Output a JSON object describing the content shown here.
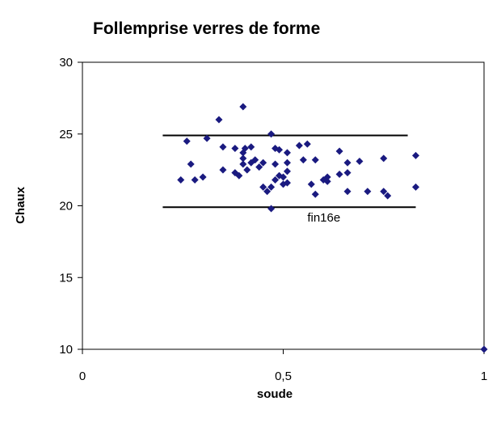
{
  "chart_data": {
    "type": "scatter",
    "title": "Follemprise verres de forme",
    "xlabel": "soude",
    "ylabel": "Chaux",
    "xlim": [
      0,
      1
    ],
    "ylim": [
      10,
      30
    ],
    "x_ticks": [
      "0",
      "0,5",
      "1"
    ],
    "y_ticks": [
      "10",
      "15",
      "20",
      "25",
      "30"
    ],
    "x_tick_values": [
      0,
      0.5,
      1
    ],
    "y_tick_values": [
      10,
      15,
      20,
      25,
      30
    ],
    "grid": false,
    "marker": "diamond",
    "marker_color": "#1a1a80",
    "line_color": "#000000",
    "reference_lines": [
      {
        "y": 24.9,
        "x_start": 0.2,
        "x_end": 0.81
      },
      {
        "y": 19.9,
        "x_start": 0.2,
        "x_end": 0.83
      }
    ],
    "annotations": [
      {
        "text": "fin16e",
        "x": 0.56,
        "y": 18.9
      }
    ],
    "points": [
      {
        "x": 0.245,
        "y": 21.8
      },
      {
        "x": 0.26,
        "y": 24.5
      },
      {
        "x": 0.27,
        "y": 22.9
      },
      {
        "x": 0.28,
        "y": 21.8
      },
      {
        "x": 0.3,
        "y": 22.0
      },
      {
        "x": 0.31,
        "y": 24.7
      },
      {
        "x": 0.34,
        "y": 26.0
      },
      {
        "x": 0.35,
        "y": 24.1
      },
      {
        "x": 0.35,
        "y": 22.5
      },
      {
        "x": 0.38,
        "y": 24.0
      },
      {
        "x": 0.38,
        "y": 22.3
      },
      {
        "x": 0.39,
        "y": 22.1
      },
      {
        "x": 0.4,
        "y": 23.7
      },
      {
        "x": 0.4,
        "y": 23.3
      },
      {
        "x": 0.4,
        "y": 22.9
      },
      {
        "x": 0.4,
        "y": 26.9
      },
      {
        "x": 0.405,
        "y": 24.0
      },
      {
        "x": 0.41,
        "y": 22.5
      },
      {
        "x": 0.42,
        "y": 24.1
      },
      {
        "x": 0.42,
        "y": 23.0
      },
      {
        "x": 0.43,
        "y": 23.2
      },
      {
        "x": 0.44,
        "y": 22.7
      },
      {
        "x": 0.45,
        "y": 23.0
      },
      {
        "x": 0.45,
        "y": 21.3
      },
      {
        "x": 0.46,
        "y": 21.0
      },
      {
        "x": 0.47,
        "y": 25.0
      },
      {
        "x": 0.47,
        "y": 21.3
      },
      {
        "x": 0.47,
        "y": 19.8
      },
      {
        "x": 0.48,
        "y": 24.0
      },
      {
        "x": 0.48,
        "y": 22.9
      },
      {
        "x": 0.48,
        "y": 21.8
      },
      {
        "x": 0.49,
        "y": 23.9
      },
      {
        "x": 0.49,
        "y": 22.1
      },
      {
        "x": 0.5,
        "y": 22.0
      },
      {
        "x": 0.5,
        "y": 21.5
      },
      {
        "x": 0.51,
        "y": 23.7
      },
      {
        "x": 0.51,
        "y": 23.0
      },
      {
        "x": 0.51,
        "y": 22.4
      },
      {
        "x": 0.51,
        "y": 21.6
      },
      {
        "x": 0.54,
        "y": 24.2
      },
      {
        "x": 0.55,
        "y": 23.2
      },
      {
        "x": 0.56,
        "y": 24.3
      },
      {
        "x": 0.57,
        "y": 21.5
      },
      {
        "x": 0.58,
        "y": 23.2
      },
      {
        "x": 0.58,
        "y": 20.8
      },
      {
        "x": 0.6,
        "y": 21.8
      },
      {
        "x": 0.61,
        "y": 22.0
      },
      {
        "x": 0.61,
        "y": 21.7
      },
      {
        "x": 0.64,
        "y": 23.8
      },
      {
        "x": 0.64,
        "y": 22.2
      },
      {
        "x": 0.66,
        "y": 23.0
      },
      {
        "x": 0.66,
        "y": 22.3
      },
      {
        "x": 0.66,
        "y": 21.0
      },
      {
        "x": 0.69,
        "y": 23.1
      },
      {
        "x": 0.71,
        "y": 21.0
      },
      {
        "x": 0.75,
        "y": 23.3
      },
      {
        "x": 0.75,
        "y": 21.0
      },
      {
        "x": 0.76,
        "y": 20.7
      },
      {
        "x": 0.83,
        "y": 23.5
      },
      {
        "x": 0.83,
        "y": 21.3
      },
      {
        "x": 1.0,
        "y": 10.0
      }
    ]
  }
}
